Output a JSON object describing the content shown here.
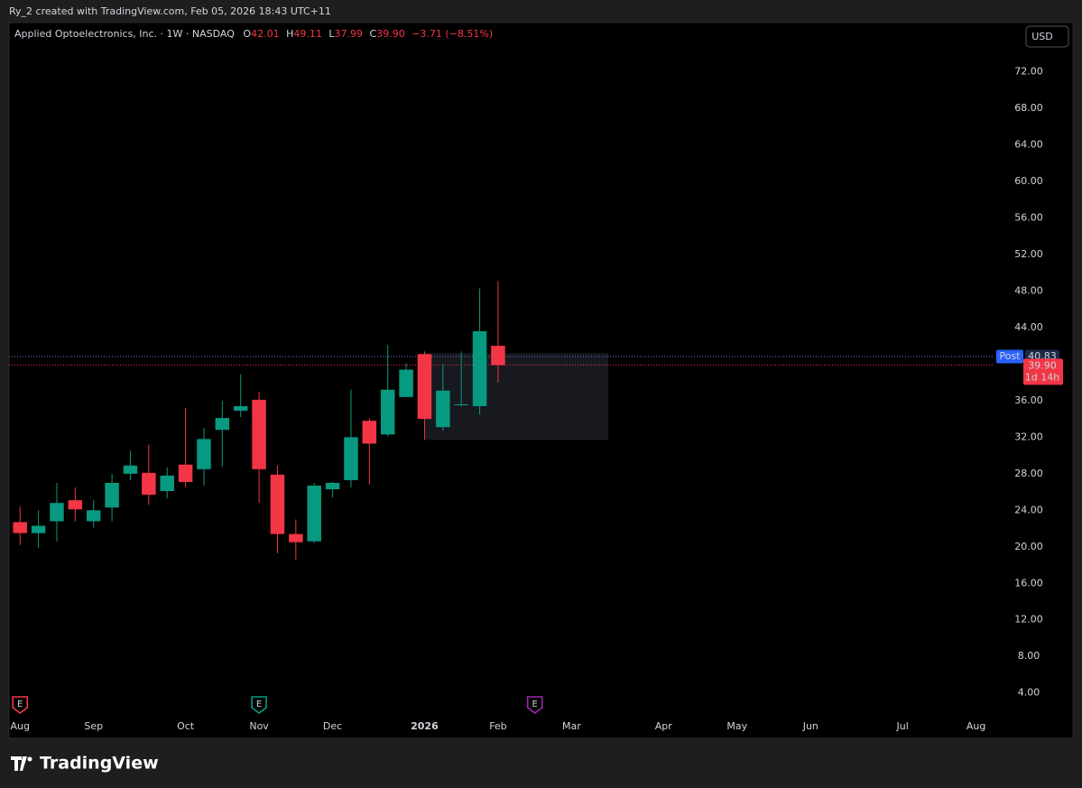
{
  "credit": "Ry_2 created with TradingView.com, Feb 05, 2026 18:43 UTC+11",
  "brand": "TradingView",
  "chart_data": {
    "type": "candlestick",
    "title": "Applied Optoelectronics, Inc. · 1W · NASDAQ",
    "ohlc_letters": [
      "O",
      "H",
      "L",
      "C"
    ],
    "change": "−3.71 (−8.51%)",
    "currency": "USD",
    "x": [
      0,
      1,
      2,
      3,
      4,
      5,
      6,
      7,
      8,
      9,
      10,
      11,
      12,
      13,
      14,
      15,
      16,
      17,
      18,
      19,
      20,
      21,
      22,
      23,
      24,
      25,
      26
    ],
    "open": [
      22.7,
      21.5,
      22.8,
      25.1,
      22.8,
      24.3,
      28.0,
      28.1,
      26.1,
      29.0,
      28.5,
      32.8,
      34.9,
      36.1,
      27.9,
      21.4,
      20.6,
      26.3,
      27.3,
      33.8,
      32.3,
      36.4,
      41.1,
      33.1,
      35.5,
      35.4,
      42.01
    ],
    "high": [
      24.4,
      24.0,
      27.0,
      26.5,
      25.1,
      28.0,
      30.5,
      31.2,
      28.7,
      35.2,
      33.0,
      36.0,
      38.9,
      37.0,
      28.9,
      23.0,
      27.0,
      27.1,
      37.2,
      34.1,
      42.1,
      40.1,
      41.4,
      40.0,
      41.4,
      48.3,
      49.11
    ],
    "low": [
      20.2,
      19.9,
      20.6,
      22.8,
      22.1,
      22.8,
      27.3,
      24.6,
      25.3,
      26.5,
      26.7,
      28.8,
      34.2,
      24.8,
      19.3,
      18.6,
      20.4,
      25.4,
      26.5,
      26.8,
      32.1,
      36.4,
      31.7,
      32.7,
      35.4,
      34.5,
      37.99
    ],
    "close": [
      21.5,
      22.3,
      24.8,
      24.1,
      24.0,
      27.0,
      28.9,
      25.7,
      27.8,
      27.1,
      31.8,
      34.1,
      35.4,
      28.5,
      21.4,
      20.5,
      26.7,
      27.0,
      32.0,
      31.3,
      37.2,
      39.4,
      34.0,
      37.1,
      35.6,
      43.6,
      39.9
    ],
    "last": {
      "value": 39.9,
      "label": "39.90"
    },
    "countdown": "1d 14h",
    "post": {
      "label": "Post",
      "value": 40.83
    },
    "up_color": "#089981",
    "down_color": "#f23645",
    "xlim": [
      -0.6,
      52.9
    ],
    "ylim": [
      1.3,
      77.4
    ],
    "xticks": [
      {
        "value": 0,
        "label": "Aug"
      },
      {
        "value": 4,
        "label": "Sep"
      },
      {
        "value": 9,
        "label": "Oct"
      },
      {
        "value": 13,
        "label": "Nov"
      },
      {
        "value": 17,
        "label": "Dec"
      },
      {
        "value": 22,
        "label": "2026"
      },
      {
        "value": 26,
        "label": "Feb"
      },
      {
        "value": 30,
        "label": "Mar"
      },
      {
        "value": 35,
        "label": "Apr"
      },
      {
        "value": 39,
        "label": "May"
      },
      {
        "value": 43,
        "label": "Jun"
      },
      {
        "value": 48,
        "label": "Jul"
      },
      {
        "value": 52,
        "label": "Aug"
      }
    ],
    "yticks": [
      {
        "value": 4,
        "label": "4.00"
      },
      {
        "value": 8,
        "label": "8.00"
      },
      {
        "value": 12,
        "label": "12.00"
      },
      {
        "value": 16,
        "label": "16.00"
      },
      {
        "value": 20,
        "label": "20.00"
      },
      {
        "value": 24,
        "label": "24.00"
      },
      {
        "value": 28,
        "label": "28.00"
      },
      {
        "value": 32,
        "label": "32.00"
      },
      {
        "value": 36,
        "label": "36.00"
      },
      {
        "value": 44,
        "label": "44.00"
      },
      {
        "value": 48,
        "label": "48.00"
      },
      {
        "value": 52,
        "label": "52.00"
      },
      {
        "value": 56,
        "label": "56.00"
      },
      {
        "value": 60,
        "label": "60.00"
      },
      {
        "value": 64,
        "label": "64.00"
      },
      {
        "value": 68,
        "label": "68.00"
      },
      {
        "value": 72,
        "label": "72.00"
      }
    ],
    "box": {
      "xlim": [
        22,
        32
      ],
      "ylim": [
        31.7,
        41.2
      ]
    },
    "events": [
      {
        "label": "E",
        "x": 0,
        "color": "#f23645"
      },
      {
        "label": "E",
        "x": 13,
        "color": "#089981"
      },
      {
        "label": "E",
        "x": 28,
        "color": "#9c27b0"
      }
    ]
  }
}
